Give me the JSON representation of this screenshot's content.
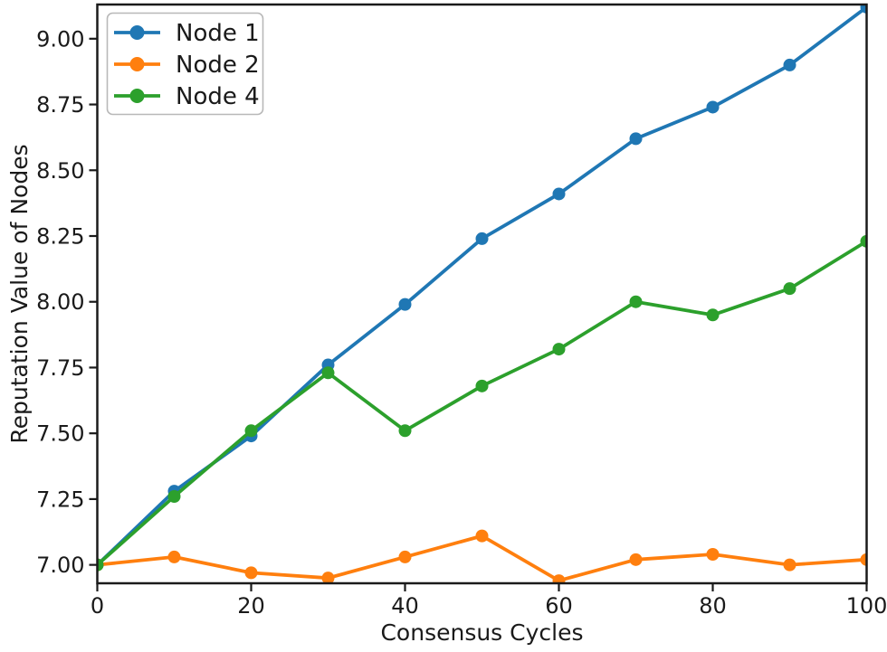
{
  "chart_data": {
    "type": "line",
    "title": "",
    "xlabel": "Consensus Cycles",
    "ylabel": "Reputation Value of Nodes",
    "x": [
      0,
      10,
      20,
      30,
      40,
      50,
      60,
      70,
      80,
      90,
      100
    ],
    "series": [
      {
        "name": "Node 1",
        "color": "#1f77b4",
        "values": [
          7.0,
          7.28,
          7.49,
          7.76,
          7.99,
          8.24,
          8.41,
          8.62,
          8.74,
          8.9,
          9.12
        ]
      },
      {
        "name": "Node 2",
        "color": "#ff7f0e",
        "values": [
          7.0,
          7.03,
          6.97,
          6.95,
          7.03,
          7.11,
          6.94,
          7.02,
          7.04,
          7.0,
          7.02
        ]
      },
      {
        "name": "Node 4",
        "color": "#2ca02c",
        "values": [
          7.0,
          7.26,
          7.51,
          7.73,
          7.51,
          7.68,
          7.82,
          8.0,
          7.95,
          8.05,
          8.23
        ]
      }
    ],
    "xlim": [
      0,
      100
    ],
    "ylim": [
      6.93,
      9.13
    ],
    "xticks": [
      0,
      20,
      40,
      60,
      80,
      100
    ],
    "xtick_labels": [
      "0",
      "20",
      "40",
      "60",
      "80",
      "100"
    ],
    "yticks": [
      7.0,
      7.25,
      7.5,
      7.75,
      8.0,
      8.25,
      8.5,
      8.75,
      9.0
    ],
    "ytick_labels": [
      "7.00",
      "7.25",
      "7.50",
      "7.75",
      "8.00",
      "8.25",
      "8.50",
      "8.75",
      "9.00"
    ],
    "legend_position": "upper left",
    "grid": false,
    "marker": "circle",
    "marker_radius": 7,
    "text_color": "#1a1a1a"
  }
}
